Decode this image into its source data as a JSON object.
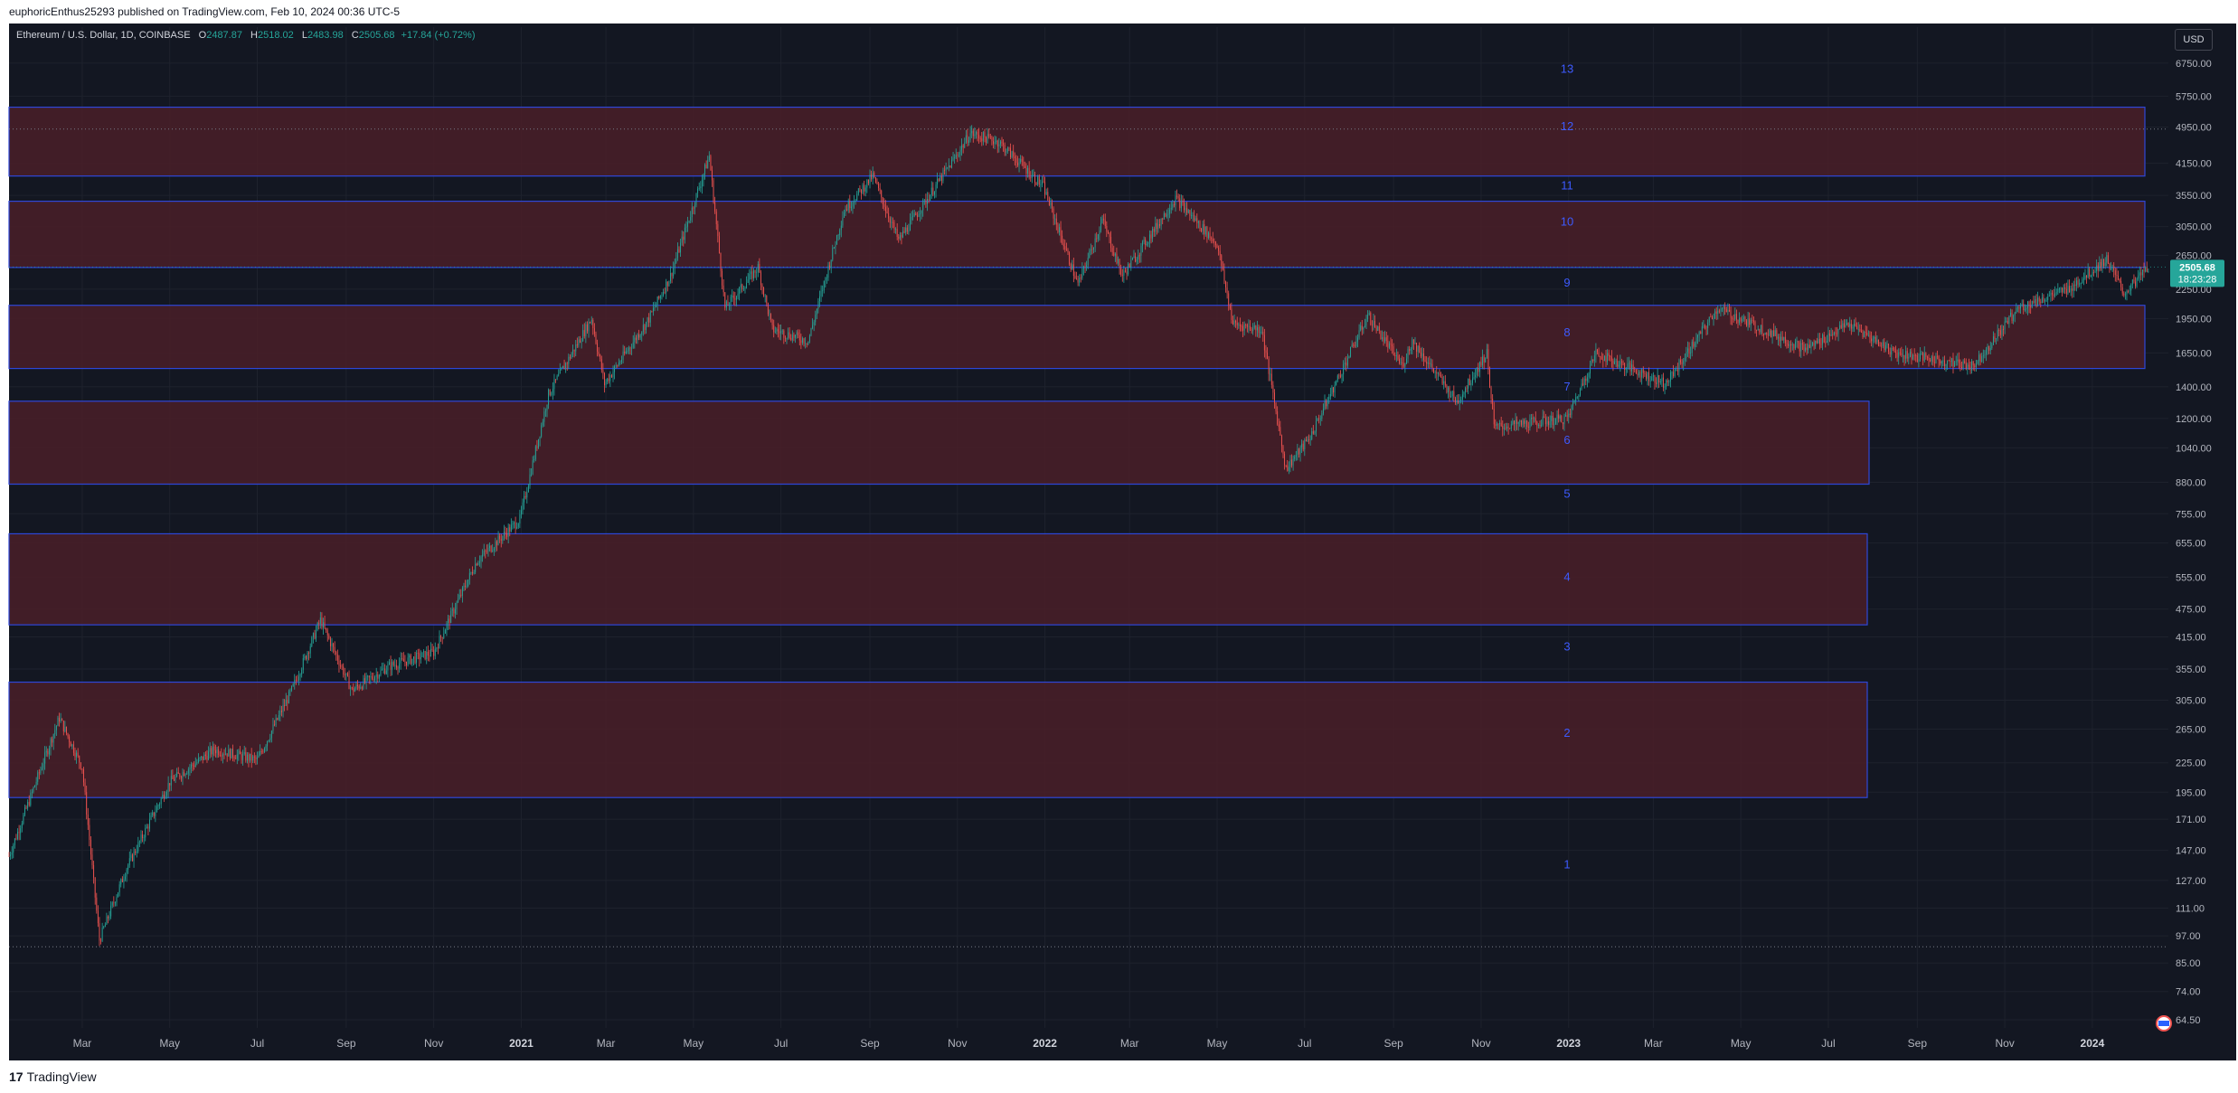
{
  "header": {
    "publish_text": "euphoricEnthus25293 published on TradingView.com, Feb 10, 2024 00:36 UTC-5"
  },
  "legend": {
    "symbol": "Ethereum / U.S. Dollar, 1D, COINBASE",
    "o_label": "O",
    "o": "2487.87",
    "h_label": "H",
    "h": "2518.02",
    "l_label": "L",
    "l": "2483.98",
    "c_label": "C",
    "c": "2505.68",
    "change": "+17.84 (+0.72%)"
  },
  "currency_button": "USD",
  "footer": {
    "brand": "TradingView",
    "brand_mark": "17"
  },
  "colors": {
    "background": "#131722",
    "up": "#26a69a",
    "down": "#ef5350",
    "zone_fill": "#4a1f28",
    "zone_border": "#2e47d8",
    "wave_label": "#3d5afe",
    "axis_text": "#b2b5be",
    "price_tag": "#26a69a"
  },
  "chart_data": {
    "type": "candlestick",
    "scale": "log",
    "grid": true,
    "price_axis_ticks": [
      "6750.00",
      "5750.00",
      "4950.00",
      "4150.00",
      "3550.00",
      "3050.00",
      "2650.00",
      "2250.00",
      "1950.00",
      "1650.00",
      "1400.00",
      "1200.00",
      "1040.00",
      "880.00",
      "755.00",
      "655.00",
      "555.00",
      "475.00",
      "415.00",
      "355.00",
      "305.00",
      "265.00",
      "225.00",
      "195.00",
      "171.00",
      "147.00",
      "127.00",
      "111.00",
      "97.00",
      "85.00",
      "74.00",
      "64.50"
    ],
    "time_axis_ticks": [
      "Mar",
      "May",
      "Jul",
      "Sep",
      "Nov",
      "2021",
      "Mar",
      "May",
      "Jul",
      "Sep",
      "Nov",
      "2022",
      "Mar",
      "May",
      "Jul",
      "Sep",
      "Nov",
      "2023",
      "Mar",
      "May",
      "Jul",
      "Sep",
      "Nov",
      "2024"
    ],
    "x_range": [
      "2020-01-10",
      "2024-02-23"
    ],
    "y_range": [
      62,
      7050
    ],
    "last_price": {
      "value": "2505.68",
      "countdown": "18:23:28"
    },
    "series_path": [
      [
        "2020-01-10",
        143
      ],
      [
        "2020-02-14",
        280
      ],
      [
        "2020-03-01",
        220
      ],
      [
        "2020-03-13",
        95
      ],
      [
        "2020-04-01",
        135
      ],
      [
        "2020-05-01",
        205
      ],
      [
        "2020-06-01",
        240
      ],
      [
        "2020-07-01",
        228
      ],
      [
        "2020-07-25",
        320
      ],
      [
        "2020-08-14",
        450
      ],
      [
        "2020-09-05",
        320
      ],
      [
        "2020-10-01",
        360
      ],
      [
        "2020-11-01",
        385
      ],
      [
        "2020-12-01",
        600
      ],
      [
        "2020-12-31",
        735
      ],
      [
        "2021-01-20",
        1350
      ],
      [
        "2021-02-19",
        1950
      ],
      [
        "2021-02-28",
        1420
      ],
      [
        "2021-03-31",
        1950
      ],
      [
        "2021-04-15",
        2400
      ],
      [
        "2021-05-12",
        4300
      ],
      [
        "2021-05-23",
        2050
      ],
      [
        "2021-06-15",
        2500
      ],
      [
        "2021-06-25",
        1850
      ],
      [
        "2021-07-20",
        1750
      ],
      [
        "2021-08-14",
        3300
      ],
      [
        "2021-09-03",
        3900
      ],
      [
        "2021-09-21",
        2850
      ],
      [
        "2021-10-31",
        4300
      ],
      [
        "2021-11-10",
        4800
      ],
      [
        "2021-11-30",
        4600
      ],
      [
        "2021-12-31",
        3700
      ],
      [
        "2022-01-24",
        2300
      ],
      [
        "2022-02-10",
        3150
      ],
      [
        "2022-02-24",
        2400
      ],
      [
        "2022-04-02",
        3500
      ],
      [
        "2022-05-01",
        2800
      ],
      [
        "2022-05-12",
        1900
      ],
      [
        "2022-06-01",
        1850
      ],
      [
        "2022-06-18",
        940
      ],
      [
        "2022-07-05",
        1100
      ],
      [
        "2022-08-14",
        1980
      ],
      [
        "2022-09-07",
        1550
      ],
      [
        "2022-09-14",
        1750
      ],
      [
        "2022-10-15",
        1300
      ],
      [
        "2022-11-05",
        1650
      ],
      [
        "2022-11-10",
        1150
      ],
      [
        "2022-12-31",
        1200
      ],
      [
        "2023-01-20",
        1650
      ],
      [
        "2023-03-10",
        1420
      ],
      [
        "2023-04-15",
        2050
      ],
      [
        "2023-06-15",
        1680
      ],
      [
        "2023-07-15",
        1900
      ],
      [
        "2023-08-17",
        1650
      ],
      [
        "2023-10-10",
        1550
      ],
      [
        "2023-11-10",
        2050
      ],
      [
        "2023-12-15",
        2250
      ],
      [
        "2024-01-11",
        2600
      ],
      [
        "2024-01-23",
        2200
      ],
      [
        "2024-02-09",
        2505
      ]
    ],
    "zones": [
      {
        "top": 5450,
        "bottom": 3900
      },
      {
        "top": 3450,
        "bottom": 2500
      },
      {
        "top": 2080,
        "bottom": 1530
      },
      {
        "top": 1305,
        "bottom": 872
      },
      {
        "top": 685,
        "bottom": 440
      },
      {
        "top": 333,
        "bottom": 190
      }
    ],
    "wave_labels": [
      {
        "label": "13",
        "price": 6550
      },
      {
        "label": "12",
        "price": 4960
      },
      {
        "label": "11",
        "price": 3720
      },
      {
        "label": "10",
        "price": 3120
      },
      {
        "label": "9",
        "price": 2320
      },
      {
        "label": "8",
        "price": 1820
      },
      {
        "label": "7",
        "price": 1400
      },
      {
        "label": "6",
        "price": 1080
      },
      {
        "label": "5",
        "price": 830
      },
      {
        "label": "4",
        "price": 555
      },
      {
        "label": "3",
        "price": 395
      },
      {
        "label": "2",
        "price": 260
      },
      {
        "label": "1",
        "price": 137
      }
    ],
    "dotted_lines": [
      4900,
      92
    ]
  }
}
